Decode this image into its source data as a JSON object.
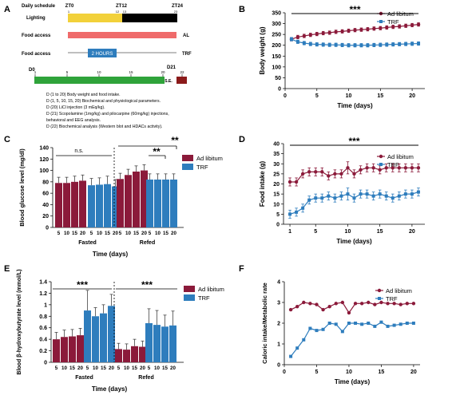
{
  "colors": {
    "red": "#8b1a3a",
    "blue": "#2e7dbd",
    "yellow": "#f2d13a",
    "black": "#000000",
    "salmon": "#ef6b6b",
    "green": "#2fa33a",
    "darkred": "#8b1a1a"
  },
  "panelA": {
    "label": "A",
    "daily_schedule": "Daily schedule",
    "zt0": "ZT0",
    "zt12": "ZT12",
    "zt24": "ZT24",
    "tick_1": "1",
    "tick_12": "12",
    "tick_13": "13",
    "tick_23": "23",
    "lighting": "Lighting",
    "food_access_1": "Food access",
    "al": "AL",
    "food_access_2": "Food access",
    "two_hours": "2 HOURS",
    "trf": "TRF",
    "d0": "D0",
    "d21": "D21",
    "tl_ticks": [
      "1",
      "5",
      "10",
      "15",
      "20",
      "22"
    ],
    "se": "S.E.",
    "notes": [
      "D (1 to 20) Body weight and food intake.",
      "D (1, 5, 10, 15, 20) Biochemical and physiological parameters.",
      "D (20) LiCl injection (3 mEq/kg).",
      "D (21) Scopolamine (1mg/kg) and pilocarpine (60mg/kg) injections,",
      "behavioral and EEG analysis.",
      "D (22) Biochemical analysis (Western blot and HDACs activity)."
    ]
  },
  "chart_data": [
    {
      "panel": "B",
      "type": "line",
      "x": [
        1,
        2,
        3,
        4,
        5,
        6,
        7,
        8,
        9,
        10,
        11,
        12,
        13,
        14,
        15,
        16,
        17,
        18,
        19,
        20,
        21
      ],
      "series": [
        {
          "name": "Ad libitum",
          "values": [
            228,
            238,
            243,
            248,
            252,
            256,
            258,
            262,
            264,
            267,
            270,
            272,
            274,
            277,
            279,
            282,
            285,
            287,
            290,
            293,
            296
          ]
        },
        {
          "name": "TRF",
          "values": [
            228,
            216,
            210,
            206,
            204,
            203,
            202,
            202,
            201,
            200,
            200,
            200,
            200,
            201,
            202,
            203,
            204,
            205,
            206,
            207,
            208
          ]
        }
      ],
      "error": [
        8,
        8,
        8,
        8,
        8,
        8,
        8,
        8,
        8,
        8,
        8,
        8,
        8,
        8,
        8,
        8,
        8,
        8,
        8,
        8,
        8
      ],
      "xlabel": "Time (days)",
      "ylabel": "Body weight (g)",
      "ylim": [
        0,
        350
      ],
      "yticks": [
        0,
        50,
        100,
        150,
        200,
        250,
        300,
        350
      ],
      "xticks": [
        0,
        5,
        10,
        15,
        20
      ],
      "xlim": [
        0,
        22
      ],
      "significance": "***"
    },
    {
      "panel": "C",
      "type": "bar",
      "groups": [
        "Fasted",
        "Refed"
      ],
      "categories": [
        "5",
        "10",
        "15",
        "20"
      ],
      "series": [
        {
          "name": "Ad libitum",
          "values": {
            "Fasted": [
              78,
              78,
              80,
              82
            ],
            "Refed": [
              85,
              92,
              98,
              100
            ]
          }
        },
        {
          "name": "TRF",
          "values": {
            "Fasted": [
              74,
              75,
              76,
              72
            ],
            "Refed": [
              84,
              84,
              84,
              84
            ]
          }
        }
      ],
      "errors": {
        "Fasted": [
          [
            10,
            10,
            10,
            10
          ],
          [
            12,
            12,
            14,
            12
          ]
        ],
        "Refed": [
          [
            10,
            10,
            10,
            10
          ],
          [
            10,
            10,
            10,
            10
          ]
        ]
      },
      "xlabel": "Time (days)",
      "ylabel": "Blood glucose  level (mg/dl)",
      "ylim": [
        0,
        140
      ],
      "yticks": [
        0,
        20,
        40,
        60,
        80,
        100,
        120,
        140
      ],
      "annotations": [
        "n.s.",
        "**",
        "**"
      ]
    },
    {
      "panel": "D",
      "type": "line",
      "x": [
        1,
        2,
        3,
        4,
        5,
        6,
        7,
        8,
        9,
        10,
        11,
        12,
        13,
        14,
        15,
        16,
        17,
        18,
        19,
        20,
        21
      ],
      "series": [
        {
          "name": "Ad libitum",
          "values": [
            21,
            21,
            25,
            26,
            26,
            26,
            24,
            25,
            25,
            28,
            25,
            27,
            28,
            28,
            27,
            28,
            28,
            28,
            28,
            28,
            28
          ]
        },
        {
          "name": "TRF",
          "values": [
            5,
            6,
            8,
            12,
            13,
            13,
            14,
            13,
            14,
            15,
            13,
            15,
            15,
            14,
            15,
            14,
            13,
            14,
            15,
            15,
            16
          ]
        }
      ],
      "error": [
        2,
        2,
        2,
        2,
        2,
        2,
        2,
        2,
        2,
        3,
        2,
        2,
        2,
        2,
        2,
        2,
        2,
        2,
        2,
        2,
        2
      ],
      "xlabel": "Time (days)",
      "ylabel": "Food intake (g)",
      "ylim": [
        0,
        40
      ],
      "yticks": [
        0,
        5,
        10,
        15,
        20,
        25,
        30,
        35,
        40
      ],
      "xticks": [
        1,
        5,
        10,
        15,
        20
      ],
      "xlim": [
        0,
        22
      ],
      "significance": "***"
    },
    {
      "panel": "E",
      "type": "bar",
      "groups": [
        "Fasted",
        "Refed"
      ],
      "categories": [
        "5",
        "10",
        "15",
        "20"
      ],
      "series": [
        {
          "name": "Ad libitum",
          "values": {
            "Fasted": [
              0.4,
              0.44,
              0.45,
              0.47
            ],
            "Refed": [
              0.23,
              0.22,
              0.28,
              0.27
            ]
          }
        },
        {
          "name": "TRF",
          "values": {
            "Fasted": [
              0.9,
              0.8,
              0.85,
              0.98
            ],
            "Refed": [
              0.68,
              0.65,
              0.62,
              0.64
            ]
          }
        }
      ],
      "errors": {
        "Fasted": [
          [
            0.12,
            0.12,
            0.12,
            0.12
          ],
          [
            0.35,
            0.15,
            0.15,
            0.2
          ]
        ],
        "Refed": [
          [
            0.1,
            0.1,
            0.12,
            0.1
          ],
          [
            0.25,
            0.25,
            0.2,
            0.25
          ]
        ]
      },
      "xlabel": "Time (days)",
      "ylabel": "Blood β-hydroxybutyrate level (mmol/L)",
      "ylim": [
        0,
        1.4
      ],
      "yticks": [
        0,
        0.2,
        0.4,
        0.6,
        0.8,
        1,
        1.2,
        1.4
      ],
      "annotations": [
        "***",
        "***"
      ]
    },
    {
      "panel": "F",
      "type": "line",
      "x": [
        1,
        2,
        3,
        4,
        5,
        6,
        7,
        8,
        9,
        10,
        11,
        12,
        13,
        14,
        15,
        16,
        17,
        18,
        19,
        20
      ],
      "series": [
        {
          "name": "Ad libitum",
          "values": [
            2.65,
            2.8,
            3.0,
            2.95,
            2.9,
            2.65,
            2.8,
            2.95,
            3.0,
            2.5,
            2.95,
            2.95,
            3.0,
            2.9,
            3.0,
            2.95,
            2.95,
            2.9,
            2.95,
            2.95
          ]
        },
        {
          "name": "TRF",
          "values": [
            0.4,
            0.8,
            1.2,
            1.75,
            1.65,
            1.7,
            2.0,
            1.95,
            1.6,
            2.0,
            2.0,
            1.95,
            2.0,
            1.85,
            2.05,
            1.85,
            1.9,
            1.95,
            2.0,
            2.0
          ]
        }
      ],
      "xlabel": "Time (days)",
      "ylabel": "Caloric intake/Metabolic rate",
      "ylim": [
        0,
        4
      ],
      "yticks": [
        0,
        1,
        2,
        3,
        4
      ],
      "xticks": [
        0,
        5,
        10,
        15,
        20
      ],
      "xlim": [
        0,
        21
      ]
    }
  ]
}
